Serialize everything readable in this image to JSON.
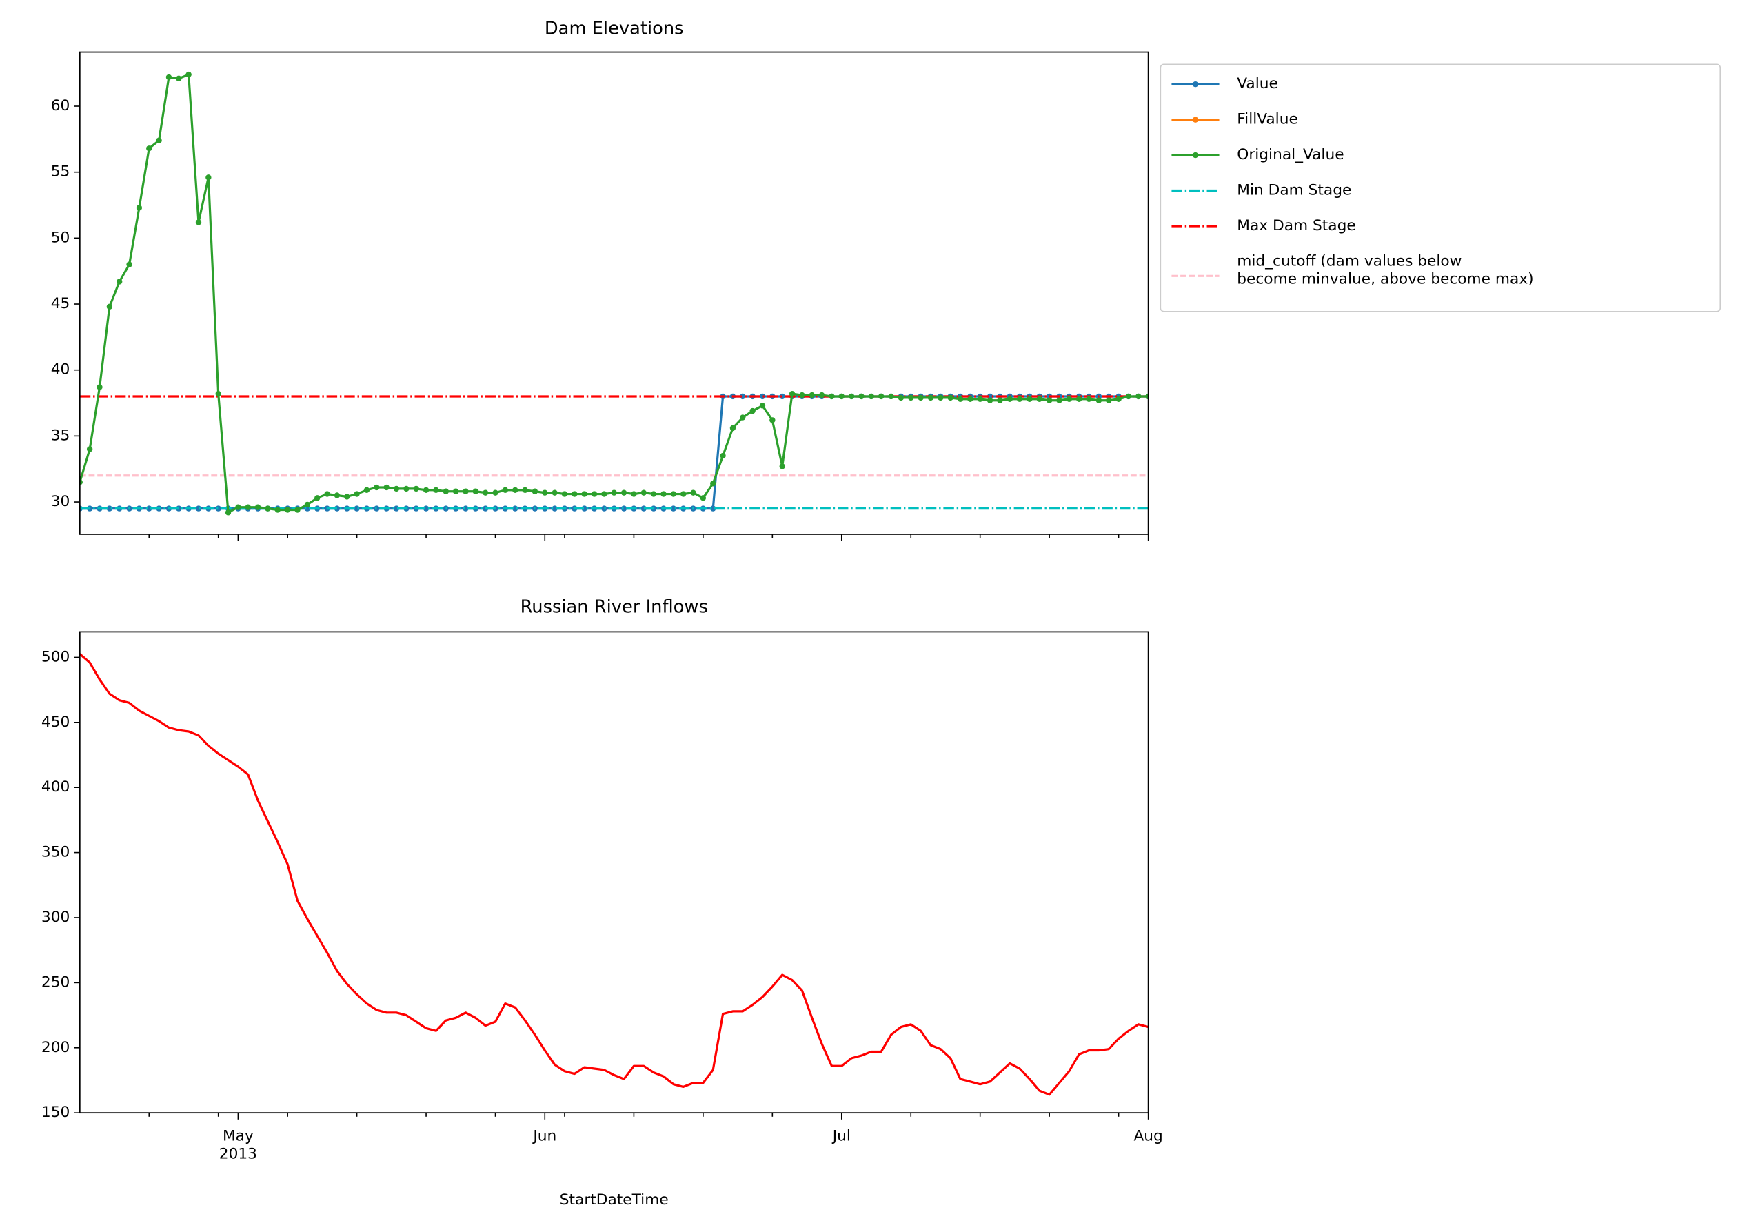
{
  "chart_data": [
    {
      "type": "line",
      "title": "Dam Elevations",
      "x": [
        "2013-04-15",
        "2013-04-16",
        "2013-04-17",
        "2013-04-18",
        "2013-04-19",
        "2013-04-20",
        "2013-04-21",
        "2013-04-22",
        "2013-04-23",
        "2013-04-24",
        "2013-04-25",
        "2013-04-26",
        "2013-04-27",
        "2013-04-28",
        "2013-04-29",
        "2013-04-30",
        "2013-05-01",
        "2013-05-02",
        "2013-05-03",
        "2013-05-04",
        "2013-05-05",
        "2013-05-06",
        "2013-05-07",
        "2013-05-08",
        "2013-05-09",
        "2013-05-10",
        "2013-05-11",
        "2013-05-12",
        "2013-05-13",
        "2013-05-14",
        "2013-05-15",
        "2013-05-16",
        "2013-05-17",
        "2013-05-18",
        "2013-05-19",
        "2013-05-20",
        "2013-05-21",
        "2013-05-22",
        "2013-05-23",
        "2013-05-24",
        "2013-05-25",
        "2013-05-26",
        "2013-05-27",
        "2013-05-28",
        "2013-05-29",
        "2013-05-30",
        "2013-05-31",
        "2013-06-01",
        "2013-06-02",
        "2013-06-03",
        "2013-06-04",
        "2013-06-05",
        "2013-06-06",
        "2013-06-07",
        "2013-06-08",
        "2013-06-09",
        "2013-06-10",
        "2013-06-11",
        "2013-06-12",
        "2013-06-13",
        "2013-06-14",
        "2013-06-15",
        "2013-06-16",
        "2013-06-17",
        "2013-06-18",
        "2013-06-19",
        "2013-06-20",
        "2013-06-21",
        "2013-06-22",
        "2013-06-23",
        "2013-06-24",
        "2013-06-25",
        "2013-06-26",
        "2013-06-27",
        "2013-06-28",
        "2013-06-29",
        "2013-06-30",
        "2013-07-01",
        "2013-07-02",
        "2013-07-03",
        "2013-07-04",
        "2013-07-05",
        "2013-07-06",
        "2013-07-07",
        "2013-07-08",
        "2013-07-09",
        "2013-07-10",
        "2013-07-11",
        "2013-07-12",
        "2013-07-13",
        "2013-07-14",
        "2013-07-15",
        "2013-07-16",
        "2013-07-17",
        "2013-07-18",
        "2013-07-19",
        "2013-07-20",
        "2013-07-21",
        "2013-07-22",
        "2013-07-23",
        "2013-07-24",
        "2013-07-25",
        "2013-07-26",
        "2013-07-27",
        "2013-07-28",
        "2013-07-29",
        "2013-07-30",
        "2013-07-31",
        "2013-08-01"
      ],
      "xlim": [
        "2013-04-15",
        "2013-08-01"
      ],
      "xticks": [
        "2013-05-01",
        "2013-06-01",
        "2013-07-01",
        "2013-08-01"
      ],
      "xminorticks": [
        "2013-04-22",
        "2013-04-29",
        "2013-05-06",
        "2013-05-13",
        "2013-05-20",
        "2013-05-27",
        "2013-06-03",
        "2013-06-10",
        "2013-06-17",
        "2013-06-24",
        "2013-07-08",
        "2013-07-15",
        "2013-07-22",
        "2013-07-29"
      ],
      "ylim": [
        27.55,
        64.1
      ],
      "yticks": [
        30,
        35,
        40,
        45,
        50,
        55,
        60
      ],
      "legend": "outside right",
      "series": [
        {
          "name": "Value",
          "color": "#1f77b4",
          "marker": true,
          "values": [
            29.5,
            29.5,
            29.5,
            29.5,
            29.5,
            29.5,
            29.5,
            29.5,
            29.5,
            29.5,
            29.5,
            29.5,
            29.5,
            29.5,
            29.5,
            29.5,
            29.5,
            29.5,
            29.5,
            29.5,
            29.5,
            29.5,
            29.5,
            29.5,
            29.5,
            29.5,
            29.5,
            29.5,
            29.5,
            29.5,
            29.5,
            29.5,
            29.5,
            29.5,
            29.5,
            29.5,
            29.5,
            29.5,
            29.5,
            29.5,
            29.5,
            29.5,
            29.5,
            29.5,
            29.5,
            29.5,
            29.5,
            29.5,
            29.5,
            29.5,
            29.5,
            29.5,
            29.5,
            29.5,
            29.5,
            29.5,
            29.5,
            29.5,
            29.5,
            29.5,
            29.5,
            29.5,
            29.5,
            29.5,
            29.5,
            38.0,
            38.0,
            38.0,
            38.0,
            38.0,
            38.0,
            38.0,
            38.0,
            38.0,
            38.0,
            38.0,
            38.0,
            38.0,
            38.0,
            38.0,
            38.0,
            38.0,
            38.0,
            38.0,
            38.0,
            38.0,
            38.0,
            38.0,
            38.0,
            38.0,
            38.0,
            38.0,
            38.0,
            38.0,
            38.0,
            38.0,
            38.0,
            38.0,
            38.0,
            38.0,
            38.0,
            38.0,
            38.0,
            38.0,
            38.0,
            38.0,
            38.0,
            38.0,
            38.0
          ]
        },
        {
          "name": "FillValue",
          "color": "#ff7f0e",
          "marker": true,
          "values": [
            null,
            null,
            null,
            null,
            null,
            null,
            null,
            null,
            null,
            null,
            null,
            null,
            null,
            null,
            null,
            null,
            null,
            null,
            null,
            null,
            null,
            null,
            null,
            null,
            null,
            null,
            null,
            null,
            null,
            null,
            null,
            null,
            null,
            null,
            null,
            null,
            null,
            null,
            null,
            null,
            null,
            null,
            null,
            null,
            null,
            null,
            null,
            null,
            null,
            null,
            null,
            null,
            null,
            null,
            null,
            null,
            null,
            null,
            null,
            null,
            null,
            null,
            null,
            null,
            null,
            null,
            null,
            null,
            null,
            null,
            null,
            null,
            null,
            null,
            null,
            null,
            null,
            null,
            null,
            null,
            null,
            null,
            null,
            null,
            null,
            null,
            null,
            null,
            null,
            null,
            null,
            null,
            null,
            null,
            null,
            null,
            null,
            null,
            null,
            null,
            null,
            null,
            null,
            null,
            null,
            null,
            null,
            null,
            null
          ]
        },
        {
          "name": "Original_Value",
          "color": "#2ca02c",
          "marker": true,
          "values": [
            31.5,
            34.0,
            38.7,
            44.8,
            46.7,
            48.0,
            52.3,
            56.8,
            57.4,
            62.2,
            62.1,
            62.4,
            51.2,
            54.6,
            38.2,
            29.2,
            29.6,
            29.6,
            29.6,
            29.5,
            29.4,
            29.4,
            29.4,
            29.8,
            30.3,
            30.6,
            30.5,
            30.4,
            30.6,
            30.9,
            31.1,
            31.1,
            31.0,
            31.0,
            31.0,
            30.9,
            30.9,
            30.8,
            30.8,
            30.8,
            30.8,
            30.7,
            30.7,
            30.9,
            30.9,
            30.9,
            30.8,
            30.7,
            30.7,
            30.6,
            30.6,
            30.6,
            30.6,
            30.6,
            30.7,
            30.7,
            30.6,
            30.7,
            30.6,
            30.6,
            30.6,
            30.6,
            30.7,
            30.3,
            31.4,
            33.5,
            35.6,
            36.4,
            36.9,
            37.3,
            36.2,
            32.7,
            38.2,
            38.1,
            38.1,
            38.1,
            38.0,
            38.0,
            38.0,
            38.0,
            38.0,
            38.0,
            38.0,
            37.9,
            37.9,
            37.9,
            37.9,
            37.9,
            37.9,
            37.8,
            37.8,
            37.8,
            37.7,
            37.7,
            37.8,
            37.8,
            37.8,
            37.8,
            37.7,
            37.7,
            37.8,
            37.8,
            37.8,
            37.7,
            37.7,
            37.8,
            38.0,
            38.0,
            38.0
          ]
        }
      ],
      "hlines": [
        {
          "name": "Min Dam Stage",
          "color": "#00bfbf",
          "dash": "dashdot",
          "value": 29.5
        },
        {
          "name": "Max Dam Stage",
          "color": "#ff0000",
          "dash": "dashdot",
          "value": 38.0
        },
        {
          "name": "mid_cutoff (dam values below\nbecome minvalue, above become max)",
          "color": "#ffc0cb",
          "dash": "dashed",
          "value": 32.0
        }
      ]
    },
    {
      "type": "line",
      "title": "Russian River Inflows",
      "xlabel": "StartDateTime",
      "x": [
        "2013-04-15",
        "2013-04-16",
        "2013-04-17",
        "2013-04-18",
        "2013-04-19",
        "2013-04-20",
        "2013-04-21",
        "2013-04-22",
        "2013-04-23",
        "2013-04-24",
        "2013-04-25",
        "2013-04-26",
        "2013-04-27",
        "2013-04-28",
        "2013-04-29",
        "2013-04-30",
        "2013-05-01",
        "2013-05-02",
        "2013-05-03",
        "2013-05-04",
        "2013-05-05",
        "2013-05-06",
        "2013-05-07",
        "2013-05-08",
        "2013-05-09",
        "2013-05-10",
        "2013-05-11",
        "2013-05-12",
        "2013-05-13",
        "2013-05-14",
        "2013-05-15",
        "2013-05-16",
        "2013-05-17",
        "2013-05-18",
        "2013-05-19",
        "2013-05-20",
        "2013-05-21",
        "2013-05-22",
        "2013-05-23",
        "2013-05-24",
        "2013-05-25",
        "2013-05-26",
        "2013-05-27",
        "2013-05-28",
        "2013-05-29",
        "2013-05-30",
        "2013-05-31",
        "2013-06-01",
        "2013-06-02",
        "2013-06-03",
        "2013-06-04",
        "2013-06-05",
        "2013-06-06",
        "2013-06-07",
        "2013-06-08",
        "2013-06-09",
        "2013-06-10",
        "2013-06-11",
        "2013-06-12",
        "2013-06-13",
        "2013-06-14",
        "2013-06-15",
        "2013-06-16",
        "2013-06-17",
        "2013-06-18",
        "2013-06-19",
        "2013-06-20",
        "2013-06-21",
        "2013-06-22",
        "2013-06-23",
        "2013-06-24",
        "2013-06-25",
        "2013-06-26",
        "2013-06-27",
        "2013-06-28",
        "2013-06-29",
        "2013-06-30",
        "2013-07-01",
        "2013-07-02",
        "2013-07-03",
        "2013-07-04",
        "2013-07-05",
        "2013-07-06",
        "2013-07-07",
        "2013-07-08",
        "2013-07-09",
        "2013-07-10",
        "2013-07-11",
        "2013-07-12",
        "2013-07-13",
        "2013-07-14",
        "2013-07-15",
        "2013-07-16",
        "2013-07-17",
        "2013-07-18",
        "2013-07-19",
        "2013-07-20",
        "2013-07-21",
        "2013-07-22",
        "2013-07-23",
        "2013-07-24",
        "2013-07-25",
        "2013-07-26",
        "2013-07-27",
        "2013-07-28",
        "2013-07-29",
        "2013-07-30",
        "2013-07-31",
        "2013-08-01"
      ],
      "xlim": [
        "2013-04-15",
        "2013-08-01"
      ],
      "xticks": [
        {
          "value": "2013-05-01",
          "label": "May\n2013"
        },
        {
          "value": "2013-06-01",
          "label": "Jun"
        },
        {
          "value": "2013-07-01",
          "label": "Jul"
        },
        {
          "value": "2013-08-01",
          "label": "Aug"
        }
      ],
      "xminorticks": [
        "2013-04-22",
        "2013-04-29",
        "2013-05-06",
        "2013-05-13",
        "2013-05-20",
        "2013-05-27",
        "2013-06-03",
        "2013-06-10",
        "2013-06-17",
        "2013-06-24",
        "2013-07-08",
        "2013-07-15",
        "2013-07-22",
        "2013-07-29"
      ],
      "ylim": [
        150,
        519.6
      ],
      "yticks": [
        150,
        200,
        250,
        300,
        350,
        400,
        450,
        500
      ],
      "series": [
        {
          "color": "#ff0000",
          "marker": false,
          "values": [
            502.6,
            496,
            483,
            472,
            467,
            465,
            459,
            455,
            451,
            446,
            444,
            443,
            440,
            432,
            426,
            421,
            416,
            410,
            390,
            374,
            358,
            341,
            313,
            299,
            286,
            273,
            259,
            249,
            241,
            234,
            229,
            227,
            227,
            225,
            220,
            215,
            213,
            221,
            223,
            227,
            223,
            217,
            220,
            234,
            231,
            221,
            210,
            198,
            187,
            182,
            180,
            185,
            184,
            183,
            179,
            176,
            186,
            186,
            181,
            178,
            172,
            170,
            173,
            173,
            183,
            226,
            228,
            228,
            233,
            239,
            247,
            256,
            252,
            244,
            223,
            203,
            186,
            186,
            192,
            194,
            197,
            197,
            210,
            216,
            218,
            213,
            202,
            199,
            192,
            176,
            174,
            172,
            174,
            181,
            188,
            184,
            176,
            167,
            164,
            173,
            182,
            195,
            198,
            198,
            199,
            207,
            213,
            218,
            216
          ]
        }
      ]
    }
  ]
}
